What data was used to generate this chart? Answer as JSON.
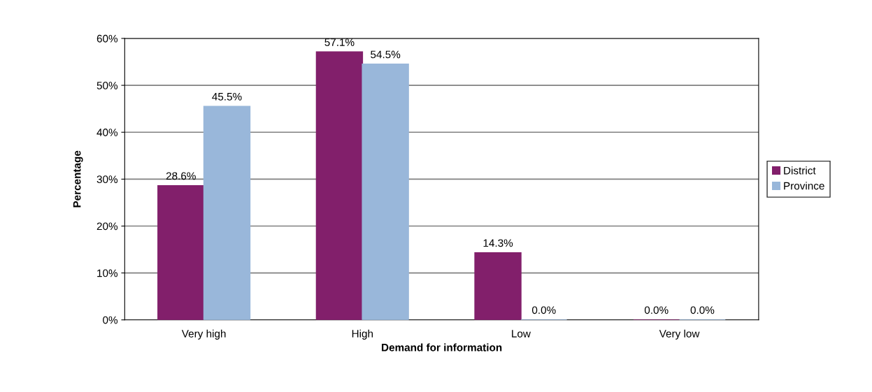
{
  "chart_data": {
    "type": "bar",
    "xlabel": "Demand for information",
    "ylabel": "Percentage",
    "categories": [
      "Very high",
      "High",
      "Low",
      "Very low"
    ],
    "series": [
      {
        "name": "District",
        "color": "#821f6b",
        "values": [
          28.6,
          57.1,
          14.3,
          0.0
        ],
        "value_labels": [
          "28.6%",
          "57.1%",
          "14.3%",
          "0.0%"
        ]
      },
      {
        "name": "Province",
        "color": "#99b7da",
        "values": [
          45.5,
          54.5,
          0.0,
          0.0
        ],
        "value_labels": [
          "45.5%",
          "54.5%",
          "0.0%",
          "0.0%"
        ]
      }
    ],
    "ylim": [
      0,
      60
    ],
    "yticks": [
      {
        "value": 0,
        "label": "0%"
      },
      {
        "value": 10,
        "label": "10%"
      },
      {
        "value": 20,
        "label": "20%"
      },
      {
        "value": 30,
        "label": "30%"
      },
      {
        "value": 40,
        "label": "40%"
      },
      {
        "value": 50,
        "label": "50%"
      },
      {
        "value": 60,
        "label": "60%"
      }
    ],
    "grid": "y",
    "legend": "right"
  }
}
